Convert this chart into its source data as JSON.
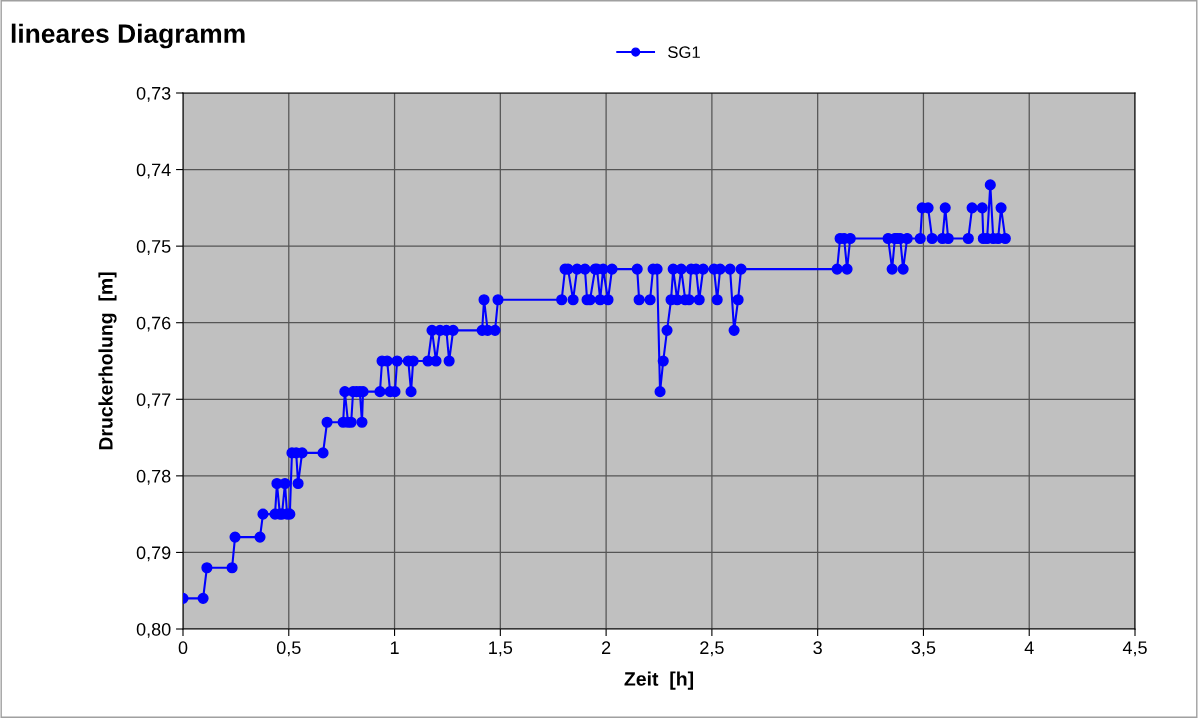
{
  "chart_data": {
    "type": "line",
    "title": "lineares Diagramm",
    "xlabel": "Zeit  [h]",
    "ylabel": "Druckerholung  [m]",
    "xlim": [
      0,
      4.5
    ],
    "ylim": [
      0.8,
      0.73
    ],
    "xticks": [
      0,
      {
        "value": 0.5,
        "label": "0,5"
      },
      1,
      {
        "value": 1.5,
        "label": "1,5"
      },
      2,
      {
        "value": 2.5,
        "label": "2,5"
      },
      3,
      {
        "value": 3.5,
        "label": "3,5"
      },
      4,
      {
        "value": 4.5,
        "label": "4,5"
      }
    ],
    "yticks": [
      {
        "value": 0.73,
        "label": "0,73"
      },
      {
        "value": 0.74,
        "label": "0,74"
      },
      {
        "value": 0.75,
        "label": "0,75"
      },
      {
        "value": 0.76,
        "label": "0,76"
      },
      {
        "value": 0.77,
        "label": "0,77"
      },
      {
        "value": 0.78,
        "label": "0,78"
      },
      {
        "value": 0.79,
        "label": "0,79"
      },
      {
        "value": 0.8,
        "label": "0,80"
      }
    ],
    "grid": true,
    "legend": "top",
    "marker": "circle",
    "line_style": "solid",
    "series": [
      {
        "name": "SG1",
        "color": "#0000ff",
        "x": [
          0,
          0.095,
          0.113,
          0.232,
          0.246,
          0.364,
          0.378,
          0.435,
          0.444,
          0.458,
          0.468,
          0.482,
          0.492,
          0.505,
          0.515,
          0.535,
          0.544,
          0.563,
          0.662,
          0.681,
          0.757,
          0.765,
          0.78,
          0.795,
          0.804,
          0.82,
          0.836,
          0.846,
          0.851,
          0.931,
          0.941,
          0.965,
          0.979,
          1.002,
          1.012,
          1.065,
          1.078,
          1.088,
          1.158,
          1.177,
          1.196,
          1.215,
          1.245,
          1.258,
          1.277,
          1.414,
          1.423,
          1.44,
          1.475,
          1.489,
          1.79,
          1.806,
          1.82,
          1.844,
          1.863,
          1.9,
          1.91,
          1.924,
          1.948,
          1.957,
          1.972,
          1.986,
          2.009,
          2.028,
          2.147,
          2.156,
          2.208,
          2.222,
          2.241,
          2.255,
          2.27,
          2.288,
          2.307,
          2.317,
          2.336,
          2.355,
          2.374,
          2.392,
          2.402,
          2.425,
          2.44,
          2.459,
          2.51,
          2.525,
          2.539,
          2.586,
          2.605,
          2.624,
          2.638,
          3.092,
          3.106,
          3.125,
          3.139,
          3.154,
          3.333,
          3.352,
          3.365,
          3.376,
          3.39,
          3.404,
          3.423,
          3.485,
          3.494,
          3.522,
          3.541,
          3.59,
          3.603,
          3.617,
          3.712,
          3.73,
          3.778,
          3.783,
          3.801,
          3.816,
          3.83,
          3.853,
          3.867,
          3.887
        ],
        "values": [
          0.796,
          0.796,
          0.792,
          0.792,
          0.788,
          0.788,
          0.785,
          0.785,
          0.781,
          0.785,
          0.785,
          0.781,
          0.785,
          0.785,
          0.777,
          0.777,
          0.781,
          0.777,
          0.777,
          0.773,
          0.773,
          0.769,
          0.773,
          0.773,
          0.769,
          0.769,
          0.769,
          0.773,
          0.769,
          0.769,
          0.765,
          0.765,
          0.769,
          0.769,
          0.765,
          0.765,
          0.769,
          0.765,
          0.765,
          0.761,
          0.765,
          0.761,
          0.761,
          0.765,
          0.761,
          0.761,
          0.757,
          0.761,
          0.761,
          0.757,
          0.757,
          0.753,
          0.753,
          0.757,
          0.753,
          0.753,
          0.757,
          0.757,
          0.753,
          0.753,
          0.757,
          0.753,
          0.757,
          0.753,
          0.753,
          0.757,
          0.757,
          0.753,
          0.753,
          0.769,
          0.765,
          0.761,
          0.757,
          0.753,
          0.757,
          0.753,
          0.757,
          0.757,
          0.753,
          0.753,
          0.757,
          0.753,
          0.753,
          0.757,
          0.753,
          0.753,
          0.761,
          0.757,
          0.753,
          0.753,
          0.749,
          0.749,
          0.753,
          0.749,
          0.749,
          0.753,
          0.749,
          0.749,
          0.749,
          0.753,
          0.749,
          0.749,
          0.745,
          0.745,
          0.749,
          0.749,
          0.745,
          0.749,
          0.749,
          0.745,
          0.745,
          0.749,
          0.749,
          0.742,
          0.749,
          0.749,
          0.745,
          0.749
        ]
      }
    ]
  }
}
